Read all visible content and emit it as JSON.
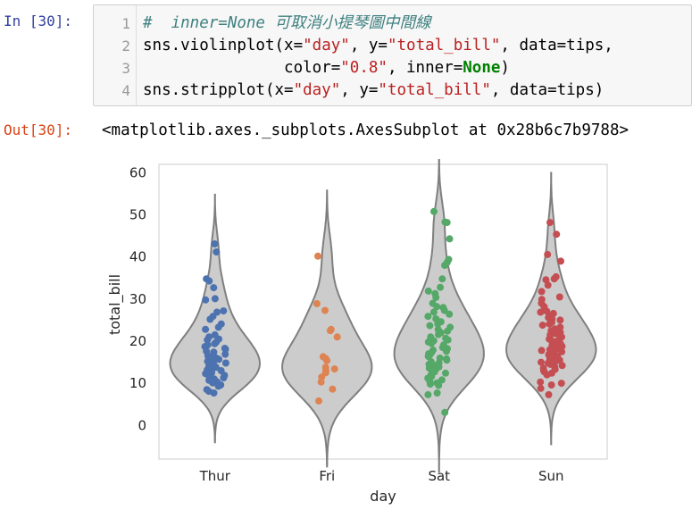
{
  "cell": {
    "in_prompt": "In [30]:",
    "out_prompt": "Out[30]:",
    "line_numbers": [
      "1",
      "2",
      "3",
      "4"
    ],
    "code": {
      "l1_comment": "#  inner=None 可取消小提琴圖中間線",
      "l2_a": "sns.violinplot(x=",
      "l2_s1": "\"day\"",
      "l2_b": ", y=",
      "l2_s2": "\"total_bill\"",
      "l2_c": ", data=tips,",
      "l3_a": "               color=",
      "l3_s1": "\"0.8\"",
      "l3_b": ", inner=",
      "l3_kw": "None",
      "l3_c": ")",
      "l4_a": "sns.stripplot(x=",
      "l4_s1": "\"day\"",
      "l4_b": ", y=",
      "l4_s2": "\"total_bill\"",
      "l4_c": ", data=tips)"
    },
    "output_text": "<matplotlib.axes._subplots.AxesSubplot at 0x28b6c7b9788>"
  },
  "chart_data": {
    "type": "scatter",
    "subtype": "violin + strip plot",
    "xlabel": "day",
    "ylabel": "total_bill",
    "categories": [
      "Thur",
      "Fri",
      "Sat",
      "Sun"
    ],
    "ylim": [
      -8,
      62
    ],
    "yticks": [
      0,
      10,
      20,
      30,
      40,
      50,
      60
    ],
    "violin_color": "#cccccc",
    "violin_edge": "#7f7f7f",
    "grid": false,
    "series": [
      {
        "name": "Thur",
        "color": "#4c72b0",
        "values": [
          43.1,
          41.2,
          34.8,
          34.3,
          32.7,
          30.1,
          29.8,
          27.2,
          26.9,
          25.9,
          25.2,
          24.1,
          23.3,
          22.8,
          21.5,
          21.0,
          20.5,
          20.3,
          19.8,
          19.4,
          19.1,
          18.7,
          18.3,
          18.1,
          17.6,
          17.4,
          16.9,
          16.5,
          16.3,
          16.0,
          15.7,
          15.4,
          15.2,
          14.8,
          14.5,
          14.1,
          13.8,
          13.5,
          13.2,
          13.0,
          12.7,
          12.5,
          12.3,
          11.9,
          11.6,
          11.3,
          11.0,
          10.7,
          10.3,
          10.1,
          9.6,
          9.3,
          8.5,
          8.1,
          7.7
        ]
      },
      {
        "name": "Fri",
        "color": "#dd8452",
        "values": [
          40.2,
          28.9,
          27.3,
          22.8,
          22.5,
          21.0,
          16.3,
          15.9,
          15.4,
          13.8,
          13.4,
          13.0,
          12.5,
          11.5,
          10.3,
          8.6,
          5.8
        ]
      },
      {
        "name": "Sat",
        "color": "#55a868",
        "values": [
          50.8,
          48.3,
          48.2,
          44.3,
          39.4,
          38.7,
          38.0,
          34.8,
          32.8,
          31.9,
          31.3,
          30.4,
          29.0,
          28.2,
          28.0,
          27.3,
          26.9,
          26.4,
          25.9,
          25.3,
          24.6,
          24.1,
          23.7,
          23.3,
          22.8,
          22.4,
          22.0,
          21.6,
          21.0,
          20.7,
          20.3,
          20.1,
          19.8,
          19.5,
          19.1,
          18.8,
          18.5,
          18.2,
          17.9,
          17.6,
          17.3,
          17.0,
          16.7,
          16.4,
          16.0,
          15.8,
          15.5,
          15.1,
          14.8,
          14.5,
          14.2,
          13.9,
          13.6,
          13.3,
          13.0,
          12.7,
          12.4,
          12.0,
          11.6,
          11.2,
          10.8,
          10.4,
          10.1,
          9.8,
          9.5,
          7.7,
          7.3,
          3.1
        ]
      },
      {
        "name": "Sun",
        "color": "#c44e52",
        "values": [
          48.2,
          45.4,
          40.6,
          39.0,
          35.3,
          34.8,
          34.6,
          33.3,
          31.8,
          30.5,
          29.9,
          29.0,
          28.2,
          27.1,
          26.9,
          26.6,
          26.0,
          25.6,
          25.3,
          25.0,
          24.5,
          24.1,
          23.8,
          23.3,
          22.9,
          22.5,
          22.1,
          21.8,
          21.5,
          21.0,
          20.7,
          20.5,
          20.2,
          19.9,
          19.6,
          19.4,
          19.1,
          18.8,
          18.5,
          18.3,
          18.0,
          17.8,
          17.5,
          17.3,
          17.0,
          16.8,
          16.5,
          16.3,
          16.0,
          15.8,
          15.5,
          15.3,
          15.0,
          14.8,
          14.5,
          14.2,
          13.9,
          13.6,
          13.3,
          13.0,
          12.7,
          12.4,
          12.0,
          10.3,
          10.0,
          9.6,
          8.8,
          7.3
        ]
      }
    ]
  }
}
